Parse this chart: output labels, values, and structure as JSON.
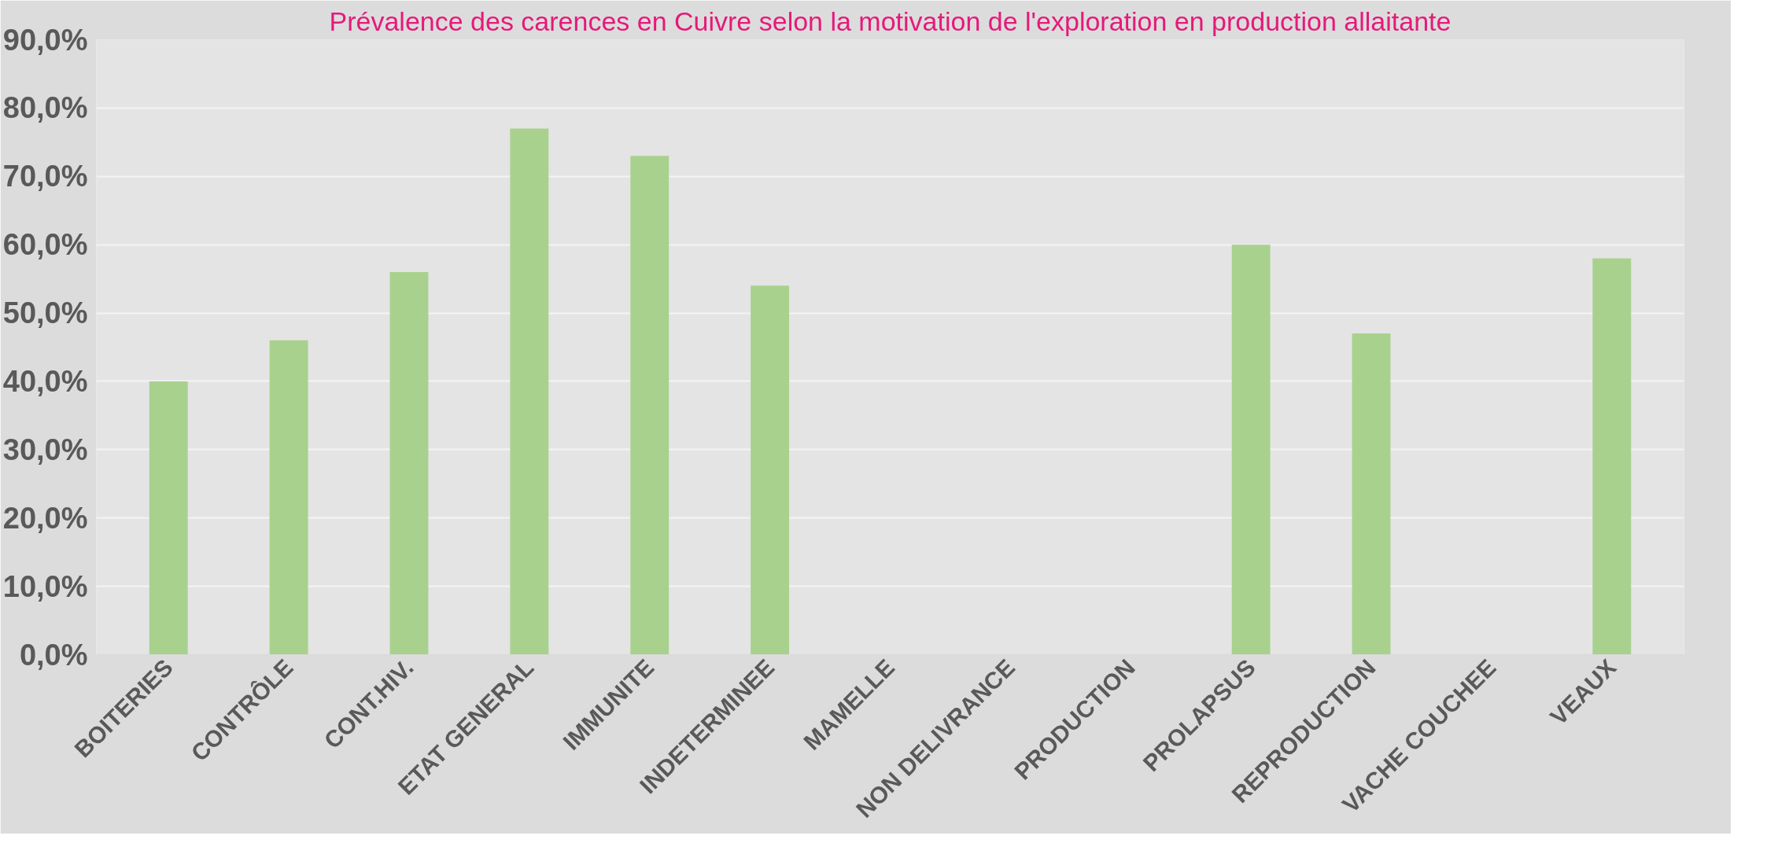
{
  "chart_data": {
    "type": "bar",
    "title": "Prévalence des carences en Cuivre selon la motivation de l'exploration en production allaitante",
    "categories": [
      "BOITERIES",
      "CONTRÔLE",
      "CONT.HIV.",
      "ETAT GENERAL",
      "IMMUNITE",
      "INDETERMINEE",
      "MAMELLE",
      "NON DELIVRANCE",
      "PRODUCTION",
      "PROLAPSUS",
      "REPRODUCTION",
      "VACHE COUCHEE",
      "VEAUX"
    ],
    "values": [
      40,
      46,
      56,
      77,
      73,
      54,
      0,
      0,
      0,
      60,
      47,
      0,
      58
    ],
    "color": "#a9d18e",
    "ylim": [
      0,
      90
    ],
    "yticks": [
      {
        "value": 0,
        "label": "0,0%"
      },
      {
        "value": 10,
        "label": "10,0%"
      },
      {
        "value": 20,
        "label": "20,0%"
      },
      {
        "value": 30,
        "label": "30,0%"
      },
      {
        "value": 40,
        "label": "40,0%"
      },
      {
        "value": 50,
        "label": "50,0%"
      },
      {
        "value": 60,
        "label": "60,0%"
      },
      {
        "value": 70,
        "label": "70,0%"
      },
      {
        "value": 80,
        "label": "80,0%"
      },
      {
        "value": 90,
        "label": "90,0%"
      }
    ],
    "grid": "y"
  }
}
